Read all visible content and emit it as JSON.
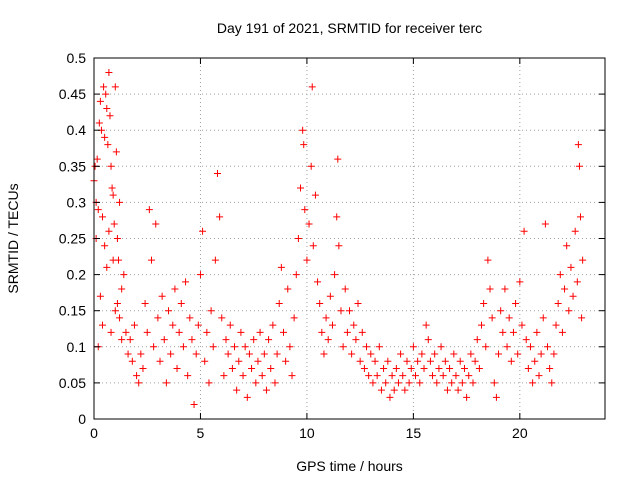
{
  "chart_data": {
    "type": "scatter",
    "title": "Day 191 of 2021, SRMTID for receiver terc",
    "xlabel": "GPS time / hours",
    "ylabel": "SRMTID / TECUs",
    "xlim": [
      0,
      24
    ],
    "ylim": [
      0,
      0.5
    ],
    "xticks": [
      0,
      5,
      10,
      15,
      20
    ],
    "xtick_labels": [
      "0",
      "5",
      "10",
      "15",
      "20"
    ],
    "yticks": [
      0,
      0.05,
      0.1,
      0.15,
      0.2,
      0.25,
      0.3,
      0.35,
      0.4,
      0.45,
      0.5
    ],
    "ytick_labels": [
      "0",
      "0.05",
      "0.1",
      "0.15",
      "0.2",
      "0.25",
      "0.3",
      "0.35",
      "0.4",
      "0.45",
      "0.5"
    ],
    "grid": true,
    "legend": "none",
    "marker": "plus",
    "series": [
      {
        "color": "#ff0000",
        "points": [
          [
            0.0,
            0.33
          ],
          [
            0.05,
            0.35
          ],
          [
            0.1,
            0.3
          ],
          [
            0.15,
            0.36
          ],
          [
            0.2,
            0.29
          ],
          [
            0.25,
            0.41
          ],
          [
            0.3,
            0.44
          ],
          [
            0.35,
            0.4
          ],
          [
            0.4,
            0.28
          ],
          [
            0.45,
            0.46
          ],
          [
            0.5,
            0.39
          ],
          [
            0.55,
            0.45
          ],
          [
            0.6,
            0.43
          ],
          [
            0.65,
            0.38
          ],
          [
            0.7,
            0.48
          ],
          [
            0.75,
            0.42
          ],
          [
            0.8,
            0.35
          ],
          [
            0.85,
            0.32
          ],
          [
            0.9,
            0.31
          ],
          [
            0.95,
            0.27
          ],
          [
            1.0,
            0.46
          ],
          [
            1.05,
            0.37
          ],
          [
            1.1,
            0.25
          ],
          [
            1.15,
            0.22
          ],
          [
            1.2,
            0.3
          ],
          [
            1.3,
            0.18
          ],
          [
            1.4,
            0.2
          ],
          [
            0.3,
            0.17
          ],
          [
            0.2,
            0.1
          ],
          [
            0.4,
            0.13
          ],
          [
            0.6,
            0.21
          ],
          [
            0.8,
            0.12
          ],
          [
            1.0,
            0.15
          ],
          [
            0.1,
            0.25
          ],
          [
            0.5,
            0.24
          ],
          [
            0.7,
            0.26
          ],
          [
            0.9,
            0.22
          ],
          [
            1.1,
            0.16
          ],
          [
            1.2,
            0.14
          ],
          [
            1.3,
            0.11
          ],
          [
            1.5,
            0.12
          ],
          [
            1.6,
            0.09
          ],
          [
            1.7,
            0.11
          ],
          [
            1.8,
            0.08
          ],
          [
            1.9,
            0.13
          ],
          [
            2.0,
            0.06
          ],
          [
            2.1,
            0.05
          ],
          [
            2.2,
            0.09
          ],
          [
            2.3,
            0.07
          ],
          [
            2.4,
            0.16
          ],
          [
            2.5,
            0.12
          ],
          [
            2.6,
            0.29
          ],
          [
            2.7,
            0.22
          ],
          [
            2.8,
            0.1
          ],
          [
            2.9,
            0.27
          ],
          [
            3.0,
            0.14
          ],
          [
            3.1,
            0.08
          ],
          [
            3.2,
            0.17
          ],
          [
            3.3,
            0.11
          ],
          [
            3.4,
            0.05
          ],
          [
            3.5,
            0.15
          ],
          [
            3.6,
            0.09
          ],
          [
            3.7,
            0.13
          ],
          [
            3.8,
            0.18
          ],
          [
            3.9,
            0.07
          ],
          [
            4.0,
            0.12
          ],
          [
            4.1,
            0.16
          ],
          [
            4.2,
            0.1
          ],
          [
            4.3,
            0.19
          ],
          [
            4.4,
            0.06
          ],
          [
            4.5,
            0.14
          ],
          [
            4.6,
            0.11
          ],
          [
            4.7,
            0.02
          ],
          [
            4.8,
            0.09
          ],
          [
            4.9,
            0.13
          ],
          [
            5.0,
            0.2
          ],
          [
            5.1,
            0.26
          ],
          [
            5.2,
            0.08
          ],
          [
            5.3,
            0.12
          ],
          [
            5.4,
            0.05
          ],
          [
            5.5,
            0.15
          ],
          [
            5.6,
            0.1
          ],
          [
            5.7,
            0.22
          ],
          [
            5.8,
            0.34
          ],
          [
            5.9,
            0.28
          ],
          [
            6.0,
            0.14
          ],
          [
            6.1,
            0.06
          ],
          [
            6.2,
            0.11
          ],
          [
            6.3,
            0.09
          ],
          [
            6.4,
            0.13
          ],
          [
            6.5,
            0.07
          ],
          [
            6.6,
            0.1
          ],
          [
            6.7,
            0.04
          ],
          [
            6.8,
            0.08
          ],
          [
            6.9,
            0.12
          ],
          [
            7.0,
            0.06
          ],
          [
            7.1,
            0.1
          ],
          [
            7.2,
            0.03
          ],
          [
            7.3,
            0.09
          ],
          [
            7.4,
            0.07
          ],
          [
            7.5,
            0.11
          ],
          [
            7.6,
            0.05
          ],
          [
            7.7,
            0.08
          ],
          [
            7.8,
            0.12
          ],
          [
            7.9,
            0.06
          ],
          [
            8.0,
            0.09
          ],
          [
            8.1,
            0.04
          ],
          [
            8.2,
            0.11
          ],
          [
            8.3,
            0.07
          ],
          [
            8.4,
            0.13
          ],
          [
            8.5,
            0.05
          ],
          [
            8.6,
            0.09
          ],
          [
            8.7,
            0.16
          ],
          [
            8.8,
            0.21
          ],
          [
            8.9,
            0.12
          ],
          [
            9.0,
            0.08
          ],
          [
            9.1,
            0.18
          ],
          [
            9.2,
            0.1
          ],
          [
            9.3,
            0.06
          ],
          [
            9.4,
            0.14
          ],
          [
            9.5,
            0.2
          ],
          [
            9.6,
            0.25
          ],
          [
            9.7,
            0.32
          ],
          [
            9.8,
            0.4
          ],
          [
            9.85,
            0.38
          ],
          [
            9.9,
            0.29
          ],
          [
            10.0,
            0.22
          ],
          [
            10.1,
            0.27
          ],
          [
            10.2,
            0.35
          ],
          [
            10.25,
            0.46
          ],
          [
            10.3,
            0.24
          ],
          [
            10.4,
            0.31
          ],
          [
            10.5,
            0.19
          ],
          [
            10.6,
            0.16
          ],
          [
            10.7,
            0.12
          ],
          [
            10.8,
            0.09
          ],
          [
            10.9,
            0.14
          ],
          [
            11.0,
            0.11
          ],
          [
            11.1,
            0.17
          ],
          [
            11.2,
            0.13
          ],
          [
            11.3,
            0.2
          ],
          [
            11.4,
            0.28
          ],
          [
            11.45,
            0.36
          ],
          [
            11.5,
            0.24
          ],
          [
            11.6,
            0.15
          ],
          [
            11.7,
            0.1
          ],
          [
            11.8,
            0.18
          ],
          [
            11.9,
            0.12
          ],
          [
            12.0,
            0.15
          ],
          [
            12.1,
            0.09
          ],
          [
            12.2,
            0.13
          ],
          [
            12.3,
            0.11
          ],
          [
            12.4,
            0.16
          ],
          [
            12.5,
            0.08
          ],
          [
            12.6,
            0.12
          ],
          [
            12.7,
            0.07
          ],
          [
            12.8,
            0.1
          ],
          [
            12.9,
            0.06
          ],
          [
            13.0,
            0.09
          ],
          [
            13.1,
            0.05
          ],
          [
            13.2,
            0.08
          ],
          [
            13.3,
            0.06
          ],
          [
            13.4,
            0.1
          ],
          [
            13.5,
            0.04
          ],
          [
            13.6,
            0.07
          ],
          [
            13.7,
            0.05
          ],
          [
            13.8,
            0.08
          ],
          [
            13.9,
            0.03
          ],
          [
            14.0,
            0.06
          ],
          [
            14.1,
            0.04
          ],
          [
            14.2,
            0.07
          ],
          [
            14.3,
            0.05
          ],
          [
            14.4,
            0.09
          ],
          [
            14.5,
            0.06
          ],
          [
            14.6,
            0.04
          ],
          [
            14.7,
            0.08
          ],
          [
            14.8,
            0.05
          ],
          [
            14.9,
            0.07
          ],
          [
            15.0,
            0.1
          ],
          [
            15.1,
            0.06
          ],
          [
            15.2,
            0.08
          ],
          [
            15.3,
            0.05
          ],
          [
            15.4,
            0.09
          ],
          [
            15.5,
            0.07
          ],
          [
            15.6,
            0.13
          ],
          [
            15.7,
            0.11
          ],
          [
            15.8,
            0.08
          ],
          [
            15.9,
            0.06
          ],
          [
            16.0,
            0.09
          ],
          [
            16.1,
            0.05
          ],
          [
            16.2,
            0.07
          ],
          [
            16.3,
            0.1
          ],
          [
            16.4,
            0.06
          ],
          [
            16.5,
            0.08
          ],
          [
            16.6,
            0.04
          ],
          [
            16.7,
            0.07
          ],
          [
            16.8,
            0.05
          ],
          [
            16.9,
            0.09
          ],
          [
            17.0,
            0.06
          ],
          [
            17.1,
            0.04
          ],
          [
            17.2,
            0.08
          ],
          [
            17.3,
            0.05
          ],
          [
            17.4,
            0.07
          ],
          [
            17.5,
            0.03
          ],
          [
            17.6,
            0.06
          ],
          [
            17.7,
            0.09
          ],
          [
            17.8,
            0.05
          ],
          [
            17.9,
            0.08
          ],
          [
            18.0,
            0.11
          ],
          [
            18.1,
            0.07
          ],
          [
            18.2,
            0.13
          ],
          [
            18.3,
            0.16
          ],
          [
            18.4,
            0.1
          ],
          [
            18.5,
            0.22
          ],
          [
            18.6,
            0.18
          ],
          [
            18.7,
            0.14
          ],
          [
            18.8,
            0.05
          ],
          [
            18.9,
            0.03
          ],
          [
            19.0,
            0.09
          ],
          [
            19.1,
            0.15
          ],
          [
            19.2,
            0.12
          ],
          [
            19.3,
            0.18
          ],
          [
            19.4,
            0.1
          ],
          [
            19.5,
            0.14
          ],
          [
            19.6,
            0.08
          ],
          [
            19.7,
            0.12
          ],
          [
            19.8,
            0.16
          ],
          [
            19.9,
            0.09
          ],
          [
            20.0,
            0.19
          ],
          [
            20.1,
            0.13
          ],
          [
            20.2,
            0.26
          ],
          [
            20.3,
            0.11
          ],
          [
            20.4,
            0.07
          ],
          [
            20.5,
            0.1
          ],
          [
            20.6,
            0.05
          ],
          [
            20.7,
            0.08
          ],
          [
            20.8,
            0.12
          ],
          [
            20.9,
            0.06
          ],
          [
            21.0,
            0.09
          ],
          [
            21.1,
            0.14
          ],
          [
            21.2,
            0.27
          ],
          [
            21.3,
            0.1
          ],
          [
            21.4,
            0.07
          ],
          [
            21.5,
            0.05
          ],
          [
            21.6,
            0.09
          ],
          [
            21.7,
            0.13
          ],
          [
            21.8,
            0.16
          ],
          [
            21.9,
            0.2
          ],
          [
            22.0,
            0.12
          ],
          [
            22.1,
            0.18
          ],
          [
            22.2,
            0.24
          ],
          [
            22.3,
            0.15
          ],
          [
            22.4,
            0.21
          ],
          [
            22.5,
            0.17
          ],
          [
            22.6,
            0.26
          ],
          [
            22.7,
            0.19
          ],
          [
            22.75,
            0.38
          ],
          [
            22.8,
            0.35
          ],
          [
            22.85,
            0.28
          ],
          [
            22.9,
            0.14
          ],
          [
            22.95,
            0.22
          ]
        ]
      }
    ]
  }
}
